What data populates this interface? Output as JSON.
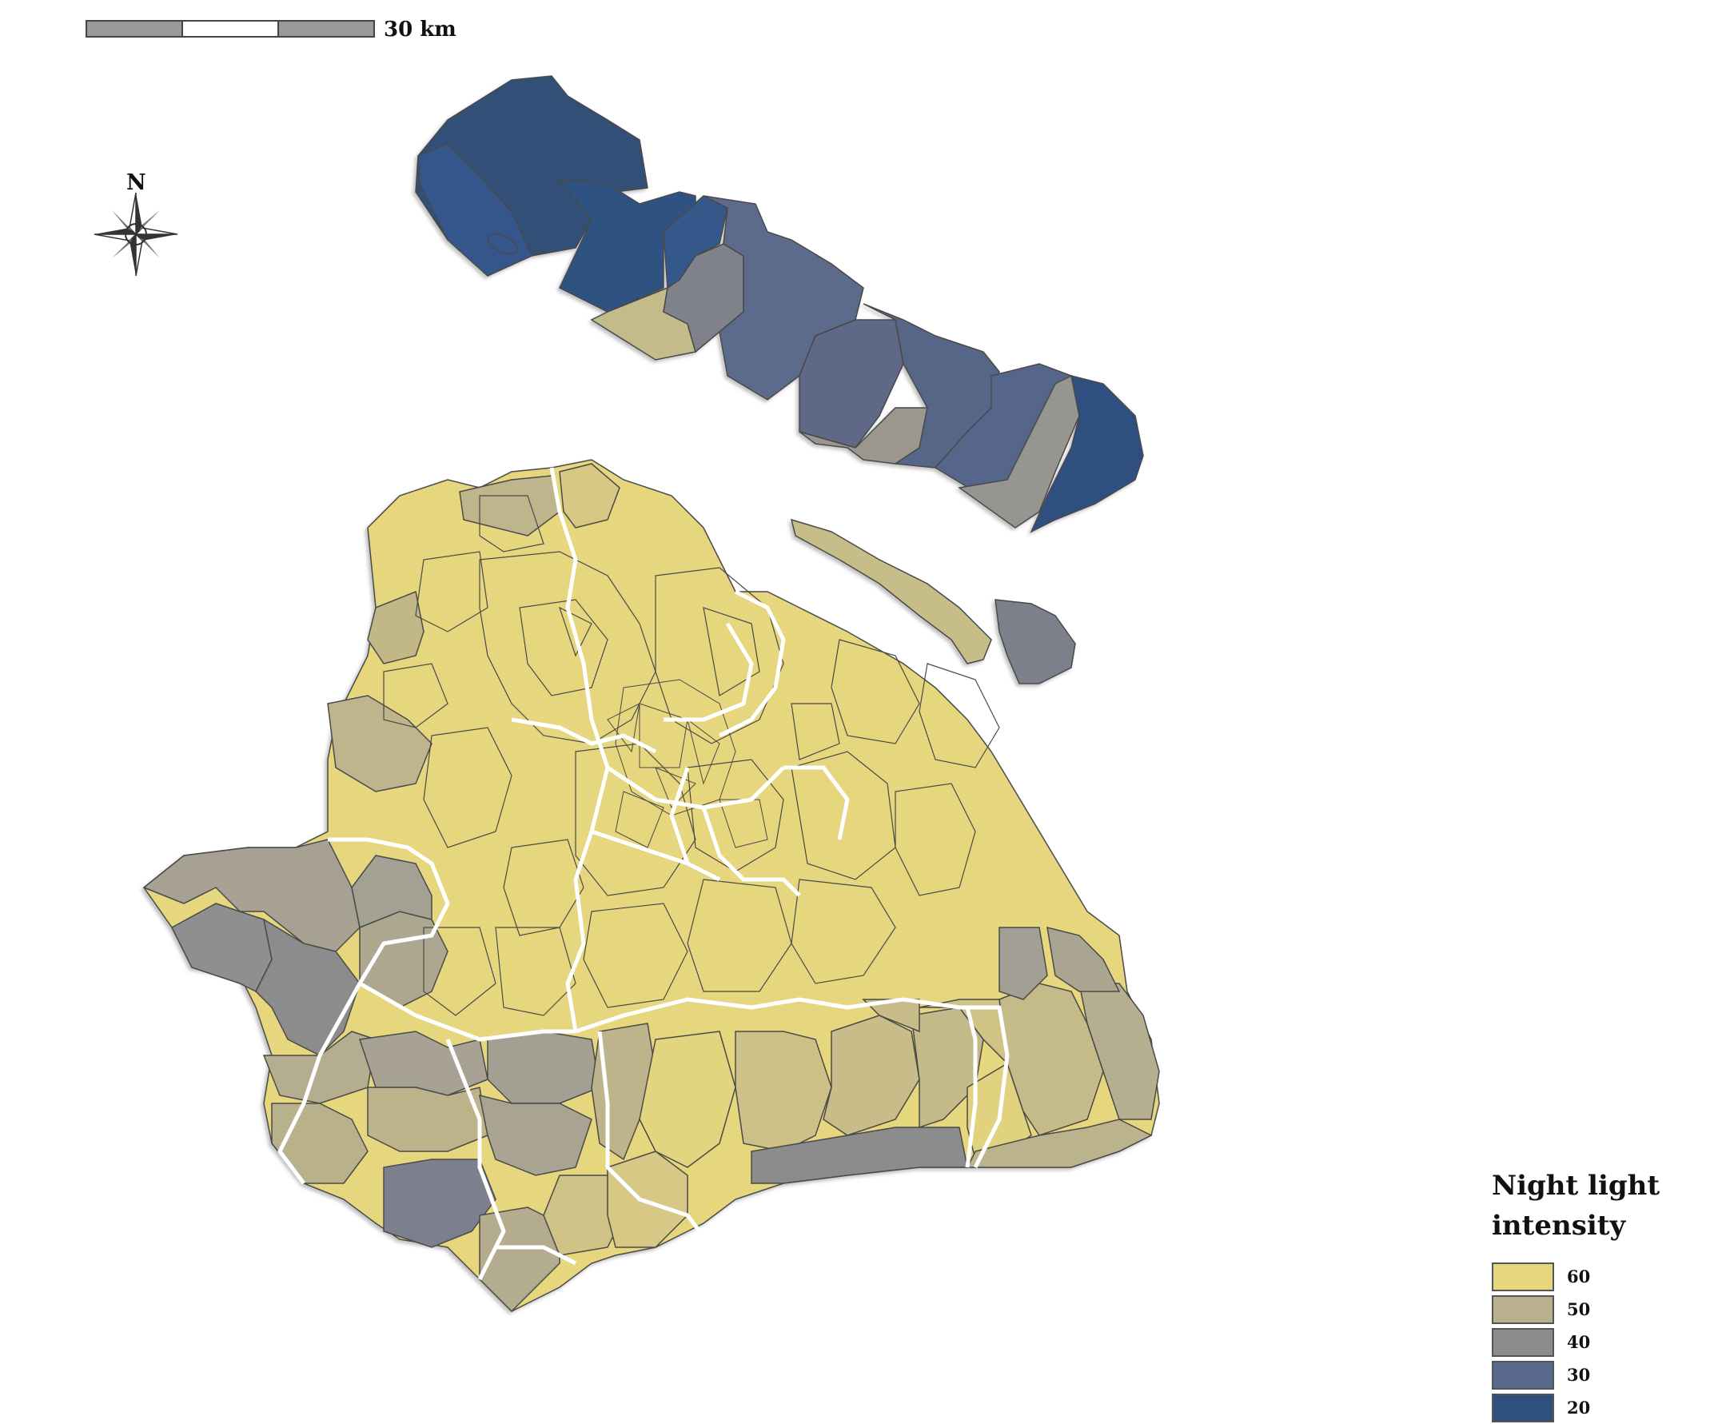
{
  "scalebar": {
    "label": "30 km"
  },
  "north_arrow": {
    "label": "N",
    "icon": "compass-rose-icon"
  },
  "legend": {
    "title_line1": "Night light",
    "title_line2": "intensity",
    "items": [
      {
        "label": "60",
        "color": "#e6d67e"
      },
      {
        "label": "50",
        "color": "#b8b08e"
      },
      {
        "label": "40",
        "color": "#8c8c8c"
      },
      {
        "label": "30",
        "color": "#5a6a8c"
      },
      {
        "label": "20",
        "color": "#2f4f7f"
      }
    ]
  },
  "colors": {
    "background": "#ffffff",
    "district_boundary": "#ffffff",
    "subdistrict_border": "#4a4a4a"
  }
}
